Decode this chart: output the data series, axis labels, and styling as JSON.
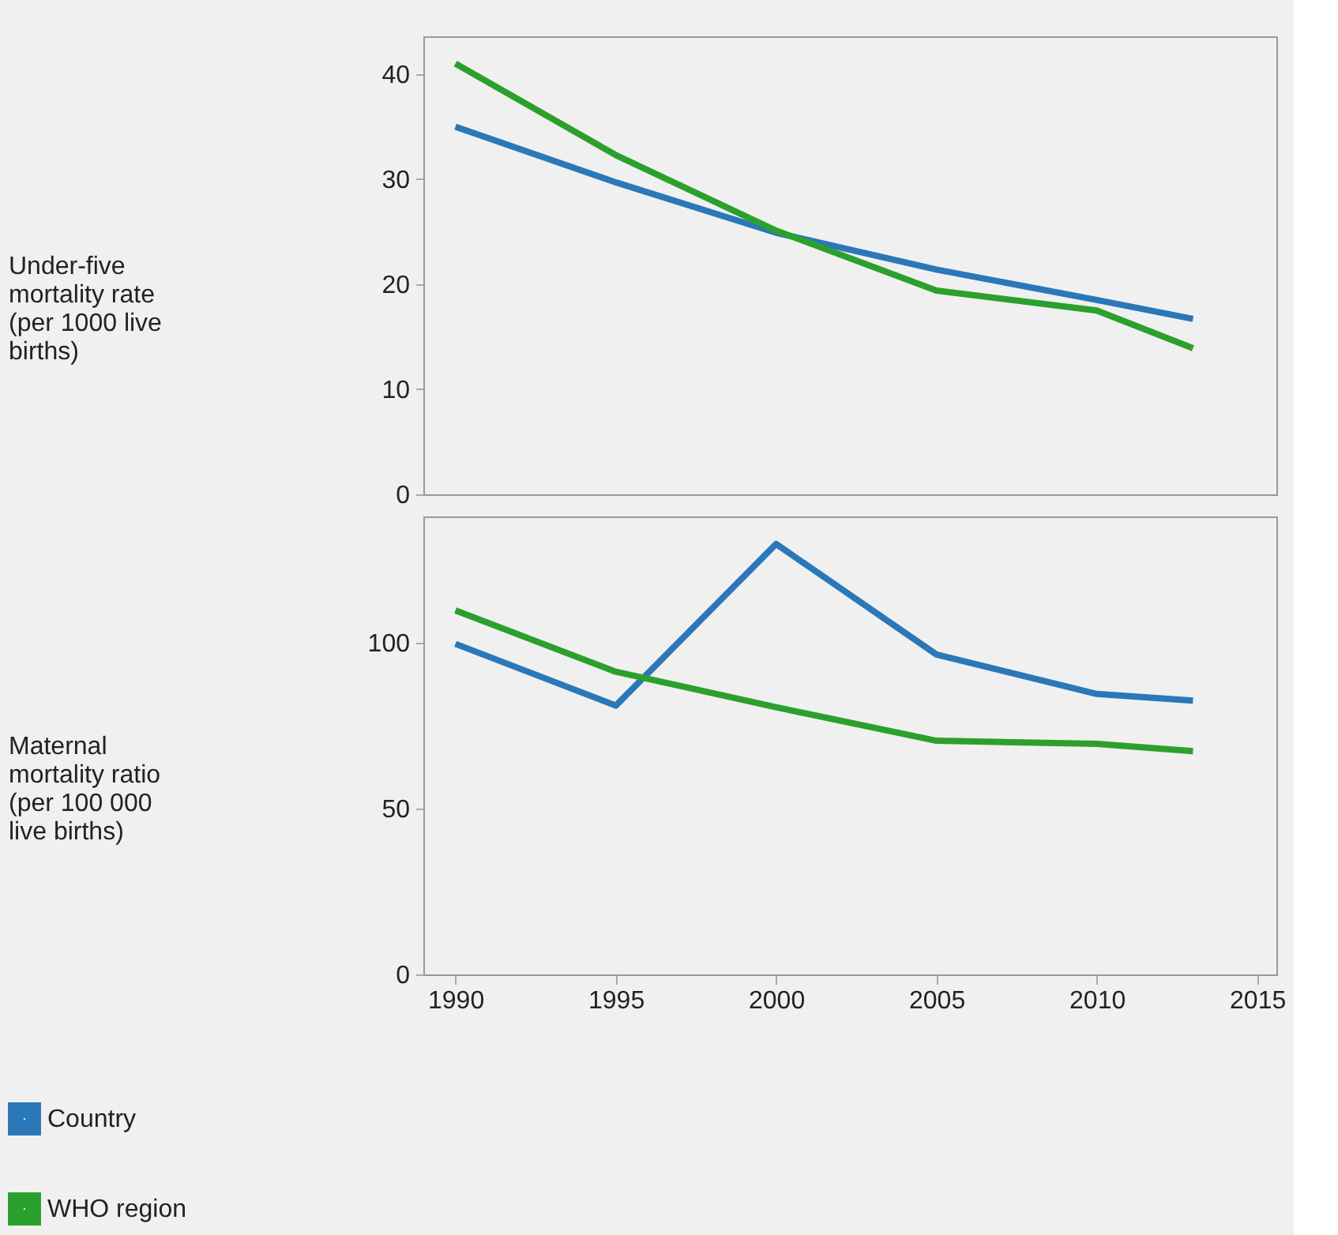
{
  "chart_data": [
    {
      "type": "line",
      "ylabel": "Under-five mortality rate (per 1000 live births)",
      "x": [
        1990,
        1995,
        2000,
        2005,
        2010,
        2013
      ],
      "xlim": [
        1989,
        2015.6
      ],
      "ylim": [
        0,
        43.6
      ],
      "yticks": [
        0,
        10,
        20,
        30,
        40
      ],
      "tick_labels": "y",
      "grid": false,
      "legend": "bottom left",
      "series": [
        {
          "name": "Country",
          "color": "#2b78b8",
          "values": [
            35,
            29.7,
            24.9,
            21.4,
            18.5,
            16.7
          ]
        },
        {
          "name": "WHO region",
          "color": "#2ca02c",
          "values": [
            41,
            32.3,
            25.1,
            19.4,
            17.5,
            13.9
          ]
        }
      ]
    },
    {
      "type": "line",
      "ylabel": "Maternal mortality ratio (per 100 000 live births)",
      "x": [
        1990,
        1995,
        2000,
        2005,
        2010,
        2013
      ],
      "xlim": [
        1989,
        2015.6
      ],
      "xticks": [
        1990,
        1995,
        2000,
        2005,
        2010,
        2015
      ],
      "ylim": [
        0,
        138
      ],
      "yticks": [
        0,
        50,
        100
      ],
      "grid": false,
      "legend": false,
      "series": [
        {
          "name": "Country",
          "color": "#2b78b8",
          "values": [
            99.6,
            81,
            129.7,
            96.4,
            84.5,
            82.5
          ]
        },
        {
          "name": "WHO region",
          "color": "#2ca02c",
          "values": [
            109.7,
            91.2,
            80.5,
            70.4,
            69.5,
            67.3
          ]
        }
      ]
    }
  ]
}
